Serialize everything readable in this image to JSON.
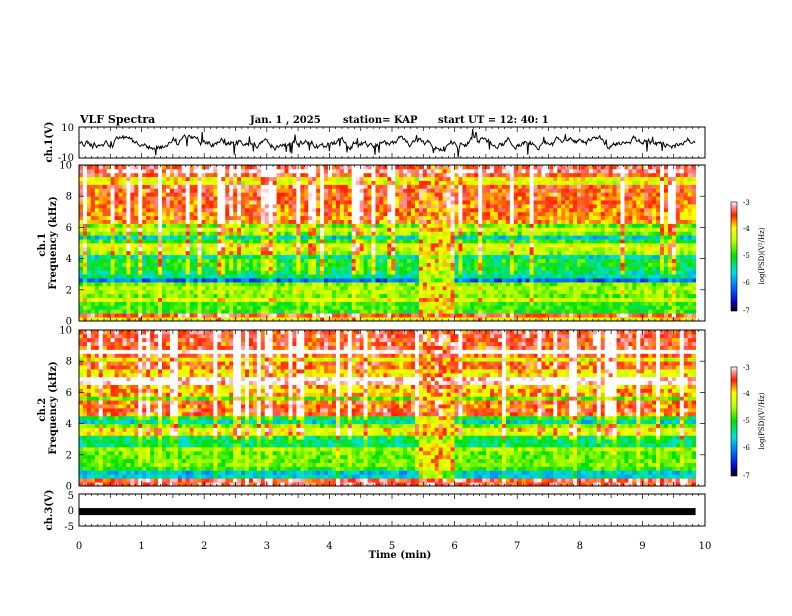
{
  "header": {
    "title": "VLF Spectra",
    "date": "Jan. 1 , 2025",
    "station": "station= KAP",
    "start_time": "start UT = 12: 40: 1"
  },
  "chart_data": {
    "type": "heatmap",
    "title": "VLF Spectra",
    "xlabel": "Time (min)",
    "xlim": [
      0,
      10
    ],
    "xticks": [
      0,
      1,
      2,
      3,
      4,
      5,
      6,
      7,
      8,
      9,
      10
    ],
    "data_end_min": 9.85,
    "panels": [
      {
        "id": "ch1-waveform",
        "type": "line",
        "ylabel": "ch.1(V)",
        "ylim": [
          -10,
          10
        ],
        "yticks": [
          10,
          -10
        ]
      },
      {
        "id": "ch1-spectrogram",
        "type": "heatmap",
        "ylabel_top": "ch.1",
        "ylabel": "Frequency (kHz)",
        "ylim": [
          0,
          10
        ],
        "yticks": [
          0,
          2,
          4,
          6,
          8,
          10
        ],
        "disturbance_window_min": [
          5.4,
          6.0
        ],
        "colorbar": {
          "label": "log(PSD)(V²/Hz)",
          "range": [
            -7,
            -3
          ],
          "ticks": [
            -3,
            -4,
            -5,
            -6,
            -7
          ]
        }
      },
      {
        "id": "ch2-spectrogram",
        "type": "heatmap",
        "ylabel_top": "ch.2",
        "ylabel": "Frequency (kHz)",
        "ylim": [
          0,
          10
        ],
        "yticks": [
          0,
          2,
          4,
          6,
          8,
          10
        ],
        "disturbance_window_min": [
          5.4,
          6.0
        ],
        "colorbar": {
          "label": "log(PSD)(V²/Hz)",
          "range": [
            -7,
            -3
          ],
          "ticks": [
            -3,
            -4,
            -5,
            -6,
            -7
          ]
        }
      },
      {
        "id": "ch3-waveform",
        "type": "line",
        "ylabel": "ch.3(V)",
        "ylim": [
          -5,
          5
        ],
        "yticks": [
          5,
          0,
          -5
        ],
        "level_V": -0.5
      }
    ]
  }
}
